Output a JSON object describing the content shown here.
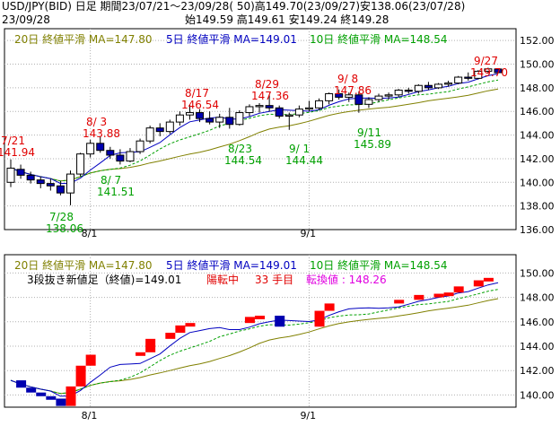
{
  "header": {
    "line1": "USD/JPY(BID) 日足 期間23/07/21～23/09/28( 50)高149.70(23/09/27)安138.06(23/07/28)",
    "date": "23/09/28",
    "ohlc": "始149.59 高149.61 安149.24 終149.28"
  },
  "colors": {
    "ma20": "#808000",
    "ma5": "#0000c0",
    "ma10": "#00a000",
    "red": "#e00000",
    "green": "#00a000",
    "magenta": "#e000e0",
    "grid": "#b0b0b0",
    "frame": "#000000",
    "bull": "#ffffff",
    "bear": "#0000b0",
    "breakRed": "#ff0000"
  },
  "top_panel": {
    "legend": {
      "ma20": "20日 終値平滑 MA=147.80",
      "ma5": "5日 終値平滑 MA=149.01",
      "ma10": "10日 終値平滑 MA=148.54"
    },
    "annotations": [
      {
        "date": "7/21",
        "price": "141.94",
        "color": "red"
      },
      {
        "date": "7/28",
        "price": "138.06",
        "color": "green"
      },
      {
        "date": "8/ 3",
        "price": "143.88",
        "color": "red"
      },
      {
        "date": "8/ 7",
        "price": "141.51",
        "color": "green"
      },
      {
        "date": "8/17",
        "price": "146.54",
        "color": "red"
      },
      {
        "date": "8/23",
        "price": "144.54",
        "color": "green"
      },
      {
        "date": "8/29",
        "price": "147.36",
        "color": "red"
      },
      {
        "date": "9/ 1",
        "price": "144.44",
        "color": "green"
      },
      {
        "date": "9/ 8",
        "price": "147.86",
        "color": "red"
      },
      {
        "date": "9/11",
        "price": "145.89",
        "color": "green"
      },
      {
        "date": "9/27",
        "price": "149.70",
        "color": "red"
      }
    ]
  },
  "bottom_panel": {
    "legend": {
      "ma20": "20日 終値平滑 MA=147.80",
      "ma5": "5日 終値平滑 MA=149.01",
      "ma10": "10日 終値平滑 MA=148.54"
    },
    "status": {
      "title": "3段抜き新値足（終値)=149.01",
      "trend": "陽転中",
      "count": "33 手目",
      "reversal": "転換値 : 148.26"
    }
  },
  "chart_data": [
    {
      "type": "candlestick",
      "title": "USD/JPY(BID) 日足",
      "yticks": [
        136,
        138,
        140,
        142,
        144,
        146,
        148,
        150,
        152
      ],
      "ylim": [
        136,
        153
      ],
      "xticks": [
        "8/1",
        "9/1"
      ],
      "candles": [
        {
          "o": 140.0,
          "h": 141.94,
          "l": 139.6,
          "c": 141.2
        },
        {
          "o": 141.1,
          "h": 141.5,
          "l": 140.3,
          "c": 140.6
        },
        {
          "o": 140.6,
          "h": 140.9,
          "l": 139.9,
          "c": 140.2
        },
        {
          "o": 140.2,
          "h": 140.5,
          "l": 139.5,
          "c": 139.9
        },
        {
          "o": 139.9,
          "h": 140.3,
          "l": 139.3,
          "c": 139.7
        },
        {
          "o": 139.7,
          "h": 140.1,
          "l": 138.9,
          "c": 139.1
        },
        {
          "o": 139.1,
          "h": 141.0,
          "l": 138.06,
          "c": 140.7
        },
        {
          "o": 140.7,
          "h": 142.5,
          "l": 140.5,
          "c": 142.4
        },
        {
          "o": 142.4,
          "h": 143.6,
          "l": 142.1,
          "c": 143.3
        },
        {
          "o": 143.3,
          "h": 143.88,
          "l": 142.5,
          "c": 142.7
        },
        {
          "o": 142.7,
          "h": 143.0,
          "l": 142.0,
          "c": 142.3
        },
        {
          "o": 142.3,
          "h": 142.8,
          "l": 141.51,
          "c": 141.8
        },
        {
          "o": 141.8,
          "h": 142.9,
          "l": 141.7,
          "c": 142.6
        },
        {
          "o": 142.6,
          "h": 143.7,
          "l": 142.4,
          "c": 143.5
        },
        {
          "o": 143.5,
          "h": 144.8,
          "l": 143.3,
          "c": 144.6
        },
        {
          "o": 144.6,
          "h": 145.0,
          "l": 143.9,
          "c": 144.3
        },
        {
          "o": 144.3,
          "h": 145.3,
          "l": 144.1,
          "c": 145.1
        },
        {
          "o": 145.1,
          "h": 146.0,
          "l": 144.8,
          "c": 145.7
        },
        {
          "o": 145.7,
          "h": 146.54,
          "l": 145.3,
          "c": 145.9
        },
        {
          "o": 145.9,
          "h": 146.2,
          "l": 145.1,
          "c": 145.4
        },
        {
          "o": 145.4,
          "h": 146.0,
          "l": 144.9,
          "c": 145.1
        },
        {
          "o": 145.1,
          "h": 145.8,
          "l": 144.6,
          "c": 145.5
        },
        {
          "o": 145.5,
          "h": 146.3,
          "l": 144.54,
          "c": 144.9
        },
        {
          "o": 144.9,
          "h": 146.1,
          "l": 144.8,
          "c": 145.9
        },
        {
          "o": 145.9,
          "h": 146.6,
          "l": 145.6,
          "c": 146.4
        },
        {
          "o": 146.4,
          "h": 146.7,
          "l": 145.9,
          "c": 146.5
        },
        {
          "o": 146.5,
          "h": 147.36,
          "l": 146.0,
          "c": 146.3
        },
        {
          "o": 146.3,
          "h": 146.5,
          "l": 145.4,
          "c": 145.6
        },
        {
          "o": 145.6,
          "h": 145.9,
          "l": 144.44,
          "c": 145.7
        },
        {
          "o": 145.7,
          "h": 146.5,
          "l": 145.5,
          "c": 146.2
        },
        {
          "o": 146.2,
          "h": 146.9,
          "l": 146.0,
          "c": 146.3
        },
        {
          "o": 146.3,
          "h": 147.1,
          "l": 146.1,
          "c": 146.9
        },
        {
          "o": 146.9,
          "h": 147.6,
          "l": 146.6,
          "c": 147.5
        },
        {
          "o": 147.5,
          "h": 147.86,
          "l": 147.0,
          "c": 147.2
        },
        {
          "o": 147.2,
          "h": 147.6,
          "l": 146.8,
          "c": 147.4
        },
        {
          "o": 147.4,
          "h": 147.7,
          "l": 145.89,
          "c": 146.6
        },
        {
          "o": 146.6,
          "h": 147.2,
          "l": 146.3,
          "c": 147.0
        },
        {
          "o": 147.0,
          "h": 147.5,
          "l": 146.8,
          "c": 147.3
        },
        {
          "o": 147.3,
          "h": 147.6,
          "l": 147.0,
          "c": 147.4
        },
        {
          "o": 147.4,
          "h": 147.9,
          "l": 147.2,
          "c": 147.8
        },
        {
          "o": 147.8,
          "h": 148.0,
          "l": 147.5,
          "c": 147.7
        },
        {
          "o": 147.7,
          "h": 148.3,
          "l": 147.5,
          "c": 148.2
        },
        {
          "o": 148.2,
          "h": 148.5,
          "l": 147.8,
          "c": 148.0
        },
        {
          "o": 148.0,
          "h": 148.4,
          "l": 147.9,
          "c": 148.3
        },
        {
          "o": 148.3,
          "h": 148.6,
          "l": 148.1,
          "c": 148.4
        },
        {
          "o": 148.4,
          "h": 149.0,
          "l": 148.3,
          "c": 148.9
        },
        {
          "o": 148.9,
          "h": 149.3,
          "l": 148.6,
          "c": 148.8
        },
        {
          "o": 148.8,
          "h": 149.5,
          "l": 148.7,
          "c": 149.4
        },
        {
          "o": 149.4,
          "h": 149.7,
          "l": 149.2,
          "c": 149.6
        },
        {
          "o": 149.59,
          "h": 149.61,
          "l": 149.24,
          "c": 149.28
        }
      ]
    },
    {
      "type": "three-line-break",
      "title": "3段抜き新値足（終値)",
      "yticks": [
        140,
        142,
        144,
        146,
        148,
        150
      ],
      "ylim": [
        139,
        151.5
      ],
      "xticks": [
        "8/1",
        "9/1"
      ]
    }
  ]
}
